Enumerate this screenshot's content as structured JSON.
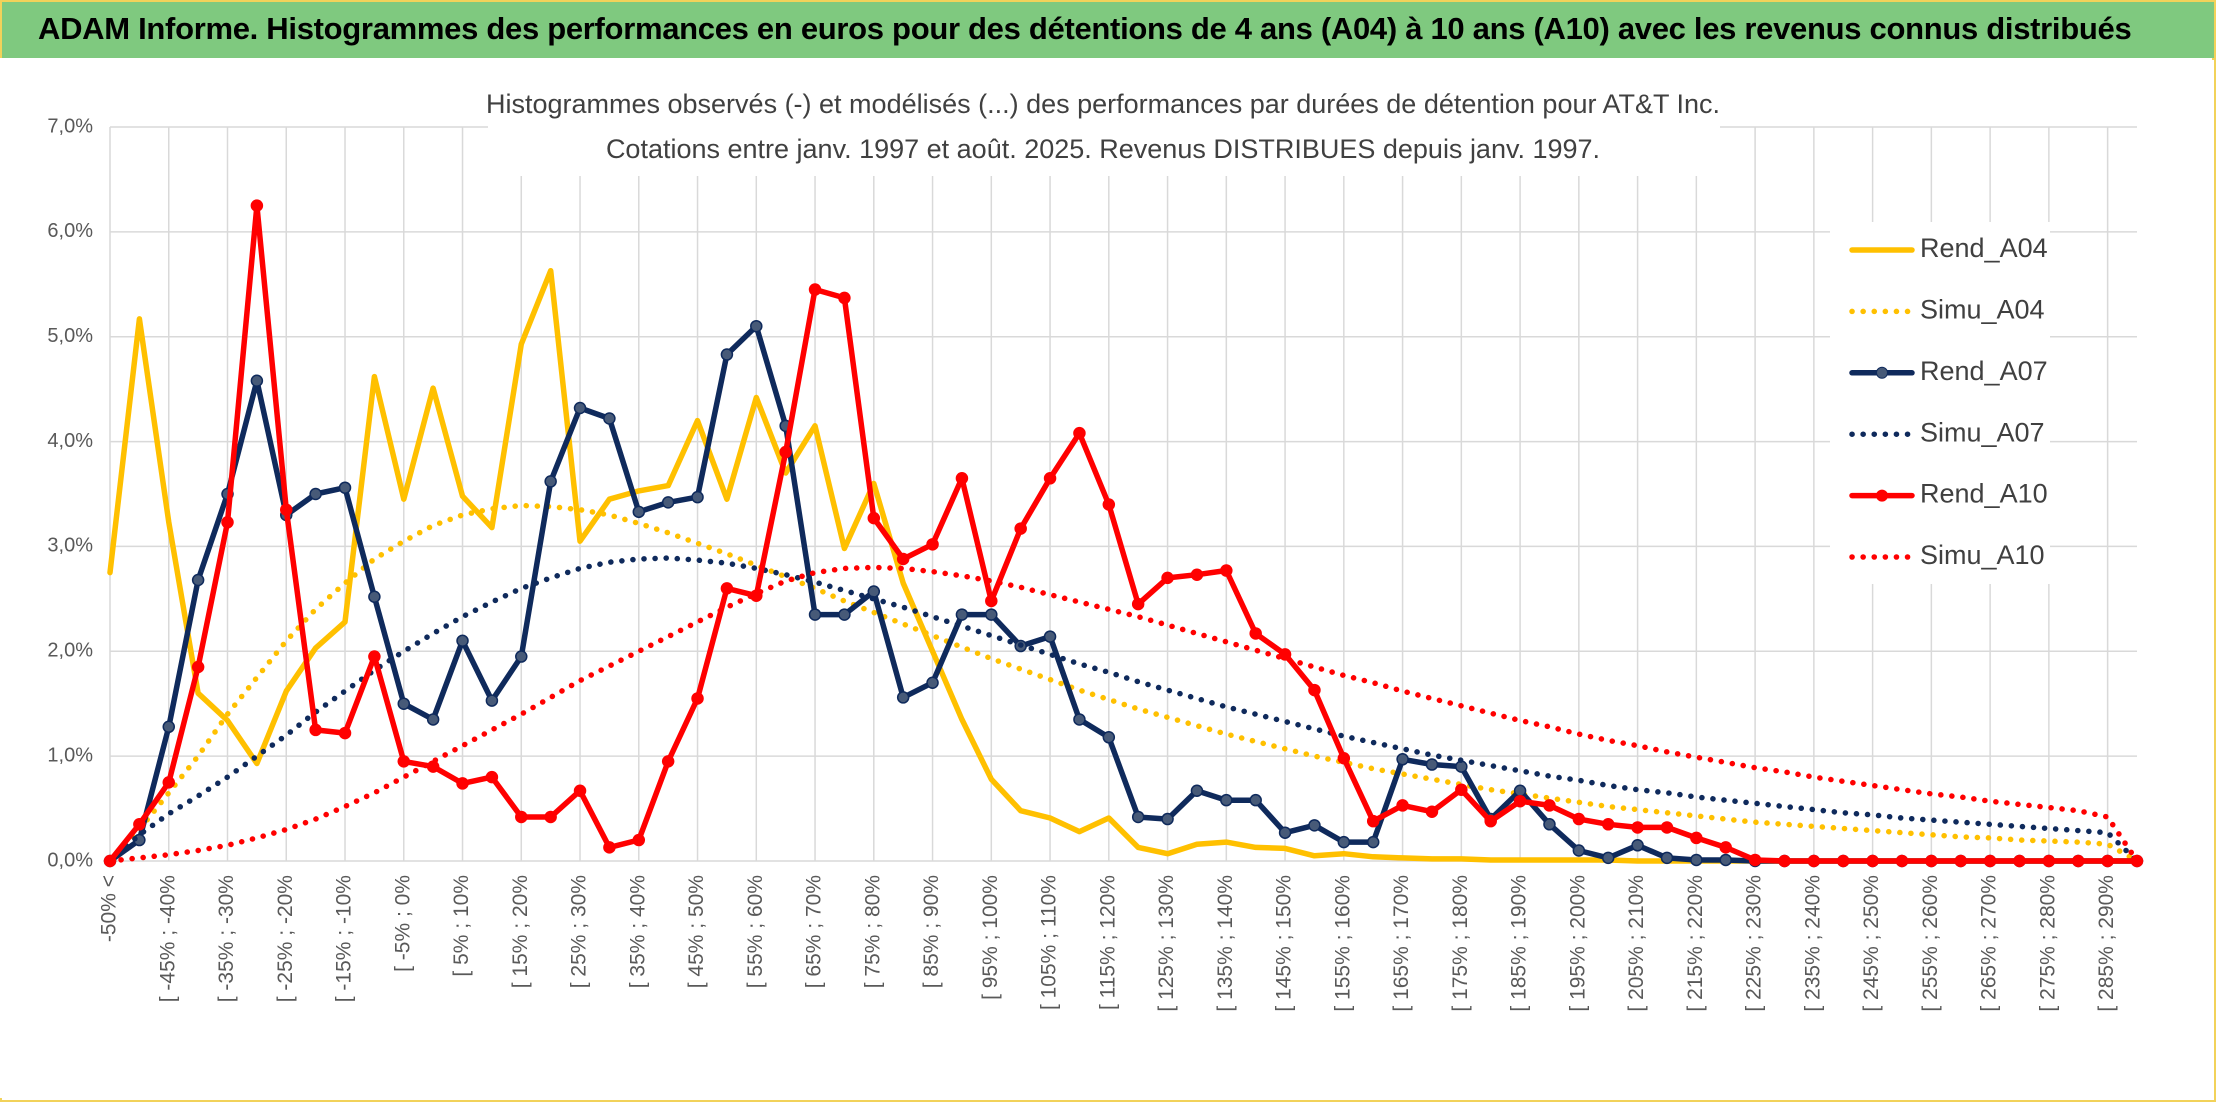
{
  "header": {
    "title": "ADAM Informe. Histogrammes des performances en euros pour des détentions de 4 ans (A04) à 10 ans (A10) avec les revenus connus distribués"
  },
  "chart_data": {
    "type": "line",
    "title": [
      "Histogrammes observés (-) et modélisés (...) des performances par durées de détention pour AT&T Inc.",
      "Cotations entre janv. 1997 et août. 2025. Revenus DISTRIBUES depuis janv. 1997."
    ],
    "categories": [
      "-50% <",
      null,
      "[ -45% ; -40%",
      null,
      "[ -35% ; -30%",
      null,
      "[ -25% ; -20%",
      null,
      "[ -15% ; -10%",
      null,
      "[ -5% ; 0%",
      null,
      "[ 5% ; 10%",
      null,
      "[ 15% ; 20%",
      null,
      "[ 25% ; 30%",
      null,
      "[ 35% ; 40%",
      null,
      "[ 45% ; 50%",
      null,
      "[ 55% ; 60%",
      null,
      "[ 65% ; 70%",
      null,
      "[ 75% ; 80%",
      null,
      "[ 85% ; 90%",
      null,
      "[ 95% ; 100%",
      null,
      "[ 105% ; 110%",
      null,
      "[ 115% ; 120%",
      null,
      "[ 125% ; 130%",
      null,
      "[ 135% ; 140%",
      null,
      "[ 145% ; 150%",
      null,
      "[ 155% ; 160%",
      null,
      "[ 165% ; 170%",
      null,
      "[ 175% ; 180%",
      null,
      "[ 185% ; 190%",
      null,
      "[ 195% ; 200%",
      null,
      "[ 205% ; 210%",
      null,
      "[ 215% ; 220%",
      null,
      "[ 225% ; 230%",
      null,
      "[ 235% ; 240%",
      null,
      "[ 245% ; 250%",
      null,
      "[ 255% ; 260%",
      null,
      "[ 265% ; 270%",
      null,
      "[ 275% ; 280%",
      null,
      "[ 285% ; 290%",
      null
    ],
    "series": [
      {
        "name": "Rend_A04",
        "color": "#ffc000",
        "style": "solid",
        "marker": false,
        "values": [
          2.75,
          5.17,
          3.23,
          1.6,
          1.34,
          0.93,
          1.62,
          2.03,
          2.28,
          4.62,
          3.45,
          4.51,
          3.48,
          3.18,
          4.93,
          5.63,
          3.05,
          3.45,
          3.53,
          3.58,
          4.2,
          3.45,
          4.42,
          3.7,
          4.15,
          2.98,
          3.6,
          2.65,
          2.0,
          1.35,
          0.78,
          0.48,
          0.41,
          0.28,
          0.41,
          0.13,
          0.07,
          0.16,
          0.18,
          0.13,
          0.12,
          0.05,
          0.07,
          0.04,
          0.03,
          0.02,
          0.02,
          0.01,
          0.01,
          0.01,
          0.01,
          0.01,
          0,
          0,
          0,
          0,
          0,
          0,
          0,
          0,
          0,
          0,
          0,
          0,
          0,
          0,
          0,
          0,
          0,
          0
        ]
      },
      {
        "name": "Simu_A04",
        "color": "#ffc000",
        "style": "dotted",
        "marker": false,
        "values": [
          0,
          0.3,
          0.65,
          1.0,
          1.4,
          1.75,
          2.1,
          2.4,
          2.65,
          2.88,
          3.05,
          3.2,
          3.3,
          3.36,
          3.39,
          3.38,
          3.35,
          3.3,
          3.22,
          3.13,
          3.03,
          2.93,
          2.82,
          2.71,
          2.6,
          2.48,
          2.37,
          2.26,
          2.15,
          2.04,
          1.93,
          1.83,
          1.73,
          1.63,
          1.54,
          1.45,
          1.37,
          1.29,
          1.21,
          1.14,
          1.07,
          1.0,
          0.94,
          0.88,
          0.83,
          0.78,
          0.73,
          0.68,
          0.64,
          0.6,
          0.56,
          0.52,
          0.49,
          0.46,
          0.43,
          0.4,
          0.37,
          0.35,
          0.33,
          0.31,
          0.29,
          0.27,
          0.25,
          0.23,
          0.22,
          0.2,
          0.19,
          0.18,
          0.16,
          0
        ]
      },
      {
        "name": "Rend_A07",
        "color": "#0f2a5c",
        "style": "solid",
        "marker": true,
        "values": [
          0,
          0.2,
          1.28,
          2.68,
          3.5,
          4.58,
          3.3,
          3.5,
          3.56,
          2.52,
          1.5,
          1.35,
          2.1,
          1.53,
          1.95,
          3.62,
          4.32,
          4.22,
          3.33,
          3.42,
          3.47,
          4.83,
          5.1,
          4.15,
          2.35,
          2.35,
          2.57,
          1.56,
          1.7,
          2.35,
          2.35,
          2.05,
          2.14,
          1.35,
          1.18,
          0.42,
          0.4,
          0.67,
          0.58,
          0.58,
          0.27,
          0.34,
          0.18,
          0.18,
          0.97,
          0.92,
          0.9,
          0.4,
          0.67,
          0.35,
          0.1,
          0.03,
          0.15,
          0.03,
          0.01,
          0.01,
          0,
          0,
          0,
          0,
          0,
          0,
          0,
          0,
          0,
          0,
          0,
          0,
          0,
          0
        ]
      },
      {
        "name": "Simu_A07",
        "color": "#0f2a5c",
        "style": "dotted",
        "marker": false,
        "values": [
          0,
          0.25,
          0.45,
          0.62,
          0.8,
          1.0,
          1.2,
          1.42,
          1.62,
          1.82,
          2.0,
          2.17,
          2.33,
          2.47,
          2.6,
          2.7,
          2.79,
          2.85,
          2.88,
          2.89,
          2.87,
          2.84,
          2.79,
          2.73,
          2.66,
          2.58,
          2.5,
          2.42,
          2.33,
          2.24,
          2.15,
          2.06,
          1.97,
          1.88,
          1.8,
          1.71,
          1.63,
          1.55,
          1.47,
          1.4,
          1.33,
          1.26,
          1.19,
          1.13,
          1.07,
          1.01,
          0.96,
          0.91,
          0.86,
          0.81,
          0.77,
          0.72,
          0.68,
          0.65,
          0.61,
          0.58,
          0.55,
          0.52,
          0.49,
          0.46,
          0.44,
          0.41,
          0.39,
          0.37,
          0.35,
          0.33,
          0.31,
          0.29,
          0.27,
          0
        ]
      },
      {
        "name": "Rend_A10",
        "color": "#ff0000",
        "style": "solid",
        "marker": true,
        "values": [
          0,
          0.35,
          0.75,
          1.85,
          3.23,
          6.25,
          3.35,
          1.25,
          1.22,
          1.95,
          0.95,
          0.9,
          0.74,
          0.8,
          0.42,
          0.42,
          0.67,
          0.13,
          0.2,
          0.95,
          1.55,
          2.6,
          2.53,
          3.9,
          5.45,
          5.37,
          3.27,
          2.88,
          3.02,
          3.65,
          2.48,
          3.17,
          3.65,
          4.08,
          3.4,
          2.45,
          2.7,
          2.73,
          2.77,
          2.17,
          1.97,
          1.63,
          0.98,
          0.38,
          0.53,
          0.47,
          0.68,
          0.38,
          0.57,
          0.53,
          0.4,
          0.35,
          0.32,
          0.32,
          0.22,
          0.13,
          0.01,
          0,
          0,
          0,
          0,
          0,
          0,
          0,
          0,
          0,
          0,
          0,
          0,
          0
        ]
      },
      {
        "name": "Simu_A10",
        "color": "#ff0000",
        "style": "dotted",
        "marker": false,
        "values": [
          0,
          0.03,
          0.06,
          0.1,
          0.15,
          0.22,
          0.3,
          0.4,
          0.52,
          0.65,
          0.8,
          0.95,
          1.1,
          1.25,
          1.4,
          1.56,
          1.72,
          1.86,
          2.0,
          2.14,
          2.28,
          2.42,
          2.55,
          2.67,
          2.75,
          2.79,
          2.8,
          2.79,
          2.76,
          2.72,
          2.67,
          2.61,
          2.54,
          2.47,
          2.4,
          2.33,
          2.25,
          2.17,
          2.09,
          2.01,
          1.93,
          1.85,
          1.77,
          1.7,
          1.62,
          1.55,
          1.48,
          1.41,
          1.34,
          1.28,
          1.21,
          1.15,
          1.1,
          1.04,
          0.99,
          0.94,
          0.89,
          0.85,
          0.8,
          0.76,
          0.72,
          0.68,
          0.64,
          0.61,
          0.57,
          0.54,
          0.51,
          0.48,
          0.42,
          0
        ]
      }
    ],
    "ylim": [
      0,
      7
    ],
    "yticks": [
      {
        "value": 0,
        "label": "0,0%"
      },
      {
        "value": 1,
        "label": "1,0%"
      },
      {
        "value": 2,
        "label": "2,0%"
      },
      {
        "value": 3,
        "label": "3,0%"
      },
      {
        "value": 4,
        "label": "4,0%"
      },
      {
        "value": 5,
        "label": "5,0%"
      },
      {
        "value": 6,
        "label": "6,0%"
      },
      {
        "value": 7,
        "label": "7,0%"
      }
    ],
    "grid": true,
    "legend": "right"
  }
}
